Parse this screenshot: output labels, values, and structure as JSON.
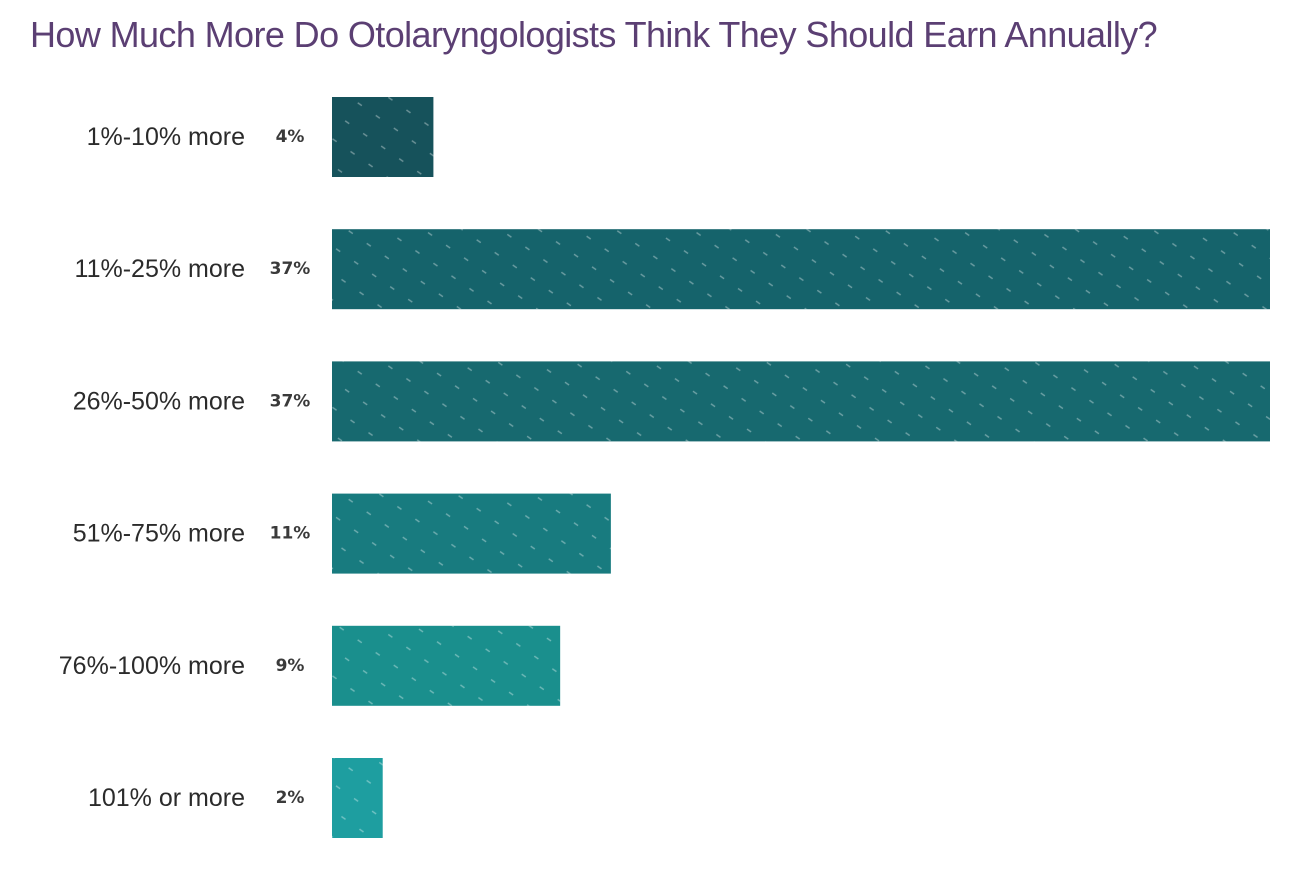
{
  "title": "How Much More Do Otolaryngologists Think They Should Earn Annually?",
  "colors": {
    "title": "#5b3f73",
    "bars": [
      "#16525b",
      "#15636b",
      "#17696f",
      "#187b7f",
      "#1a8f8d",
      "#1e9ea0"
    ]
  },
  "chart_data": {
    "type": "bar",
    "orientation": "horizontal",
    "title": "How Much More Do Otolaryngologists Think They Should Earn Annually?",
    "categories": [
      "1%-10% more",
      "11%-25% more",
      "26%-50% more",
      "51%-75% more",
      "76%-100% more",
      "101% or more"
    ],
    "values": [
      4,
      37,
      37,
      11,
      9,
      2
    ],
    "value_labels": [
      "4%",
      "37%",
      "37%",
      "11%",
      "9%",
      "2%"
    ],
    "unit": "%",
    "xlim": [
      0,
      37
    ],
    "grid": false,
    "legend": "none"
  }
}
